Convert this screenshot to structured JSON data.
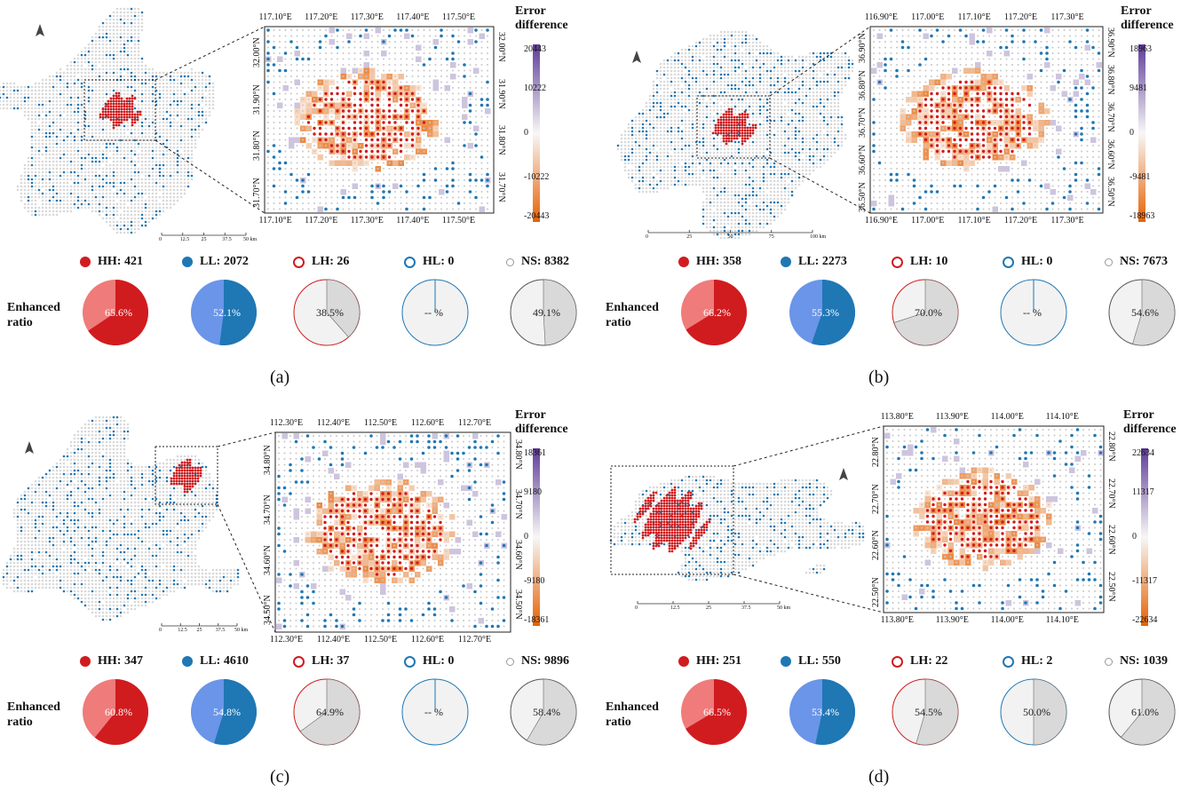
{
  "legend_labels": {
    "hh": "HH",
    "ll": "LL",
    "lh": "LH",
    "hl": "HL",
    "ns": "NS"
  },
  "enhanced_label": [
    "Enhanced",
    "ratio"
  ],
  "colorbar_title": [
    "Error",
    "difference"
  ],
  "colors": {
    "hh": "#d01c1f",
    "hh_light": "#ef7b7b",
    "ll": "#1f77b4",
    "ll_light": "#6a95e8",
    "ns_fill": "#d9d9d9",
    "ns_light": "#f2f2f2",
    "pos": "#5e3c99",
    "neg": "#e66101"
  },
  "chart_data": [
    {
      "type": "pie",
      "caption": "(a)",
      "counts": {
        "HH": 421,
        "LL": 2072,
        "LH": 26,
        "HL": 0,
        "NS": 8382
      },
      "enhanced_ratio": {
        "HH": "65.6%",
        "LL": "52.1%",
        "LH": "38.5%",
        "HL": "-- %",
        "NS": "49.1%"
      },
      "ratio_values": {
        "HH": 65.6,
        "LL": 52.1,
        "LH": 38.5,
        "HL": null,
        "NS": 49.1
      },
      "xticks": [
        "117.10°E",
        "117.20°E",
        "117.30°E",
        "117.40°E",
        "117.50°E"
      ],
      "yticks": [
        "31.70°N",
        "31.80°N",
        "31.90°N",
        "32.00°N"
      ],
      "colorbar": [
        "20443",
        "10222",
        "0",
        "-10222",
        "-20443"
      ],
      "scale": [
        "0",
        "12.5",
        "25",
        "37.5",
        "50 km"
      ]
    },
    {
      "type": "pie",
      "caption": "(b)",
      "counts": {
        "HH": 358,
        "LL": 2273,
        "LH": 10,
        "HL": 0,
        "NS": 7673
      },
      "enhanced_ratio": {
        "HH": "66.2%",
        "LL": "55.3%",
        "LH": "70.0%",
        "HL": "-- %",
        "NS": "54.6%"
      },
      "ratio_values": {
        "HH": 66.2,
        "LL": 55.3,
        "LH": 70.0,
        "HL": null,
        "NS": 54.6
      },
      "xticks": [
        "116.90°E",
        "117.00°E",
        "117.10°E",
        "117.20°E",
        "117.30°E"
      ],
      "yticks": [
        "36.50°N",
        "36.60°N",
        "36.70°N",
        "36.80°N",
        "36.90°N"
      ],
      "colorbar": [
        "18963",
        "9481",
        "0",
        "-9481",
        "-18963"
      ],
      "scale": [
        "0",
        "25",
        "50",
        "75",
        "100 km"
      ]
    },
    {
      "type": "pie",
      "caption": "(c)",
      "counts": {
        "HH": 347,
        "LL": 4610,
        "LH": 37,
        "HL": 0,
        "NS": 9896
      },
      "enhanced_ratio": {
        "HH": "60.8%",
        "LL": "54.8%",
        "LH": "64.9%",
        "HL": "-- %",
        "NS": "58.4%"
      },
      "ratio_values": {
        "HH": 60.8,
        "LL": 54.8,
        "LH": 64.9,
        "HL": null,
        "NS": 58.4
      },
      "xticks": [
        "112.30°E",
        "112.40°E",
        "112.50°E",
        "112.60°E",
        "112.70°E"
      ],
      "yticks": [
        "34.50°N",
        "34.60°N",
        "34.70°N",
        "34.80°N"
      ],
      "colorbar": [
        "18361",
        "9180",
        "0",
        "-9180",
        "-18361"
      ],
      "scale": [
        "0",
        "12.5",
        "25",
        "37.5",
        "50 km"
      ]
    },
    {
      "type": "pie",
      "caption": "(d)",
      "counts": {
        "HH": 251,
        "LL": 550,
        "LH": 22,
        "HL": 2,
        "NS": 1039
      },
      "enhanced_ratio": {
        "HH": "66.5%",
        "LL": "53.4%",
        "LH": "54.5%",
        "HL": "50.0%",
        "NS": "61.0%"
      },
      "ratio_values": {
        "HH": 66.5,
        "LL": 53.4,
        "LH": 54.5,
        "HL": 50.0,
        "NS": 61.0
      },
      "xticks": [
        "113.80°E",
        "113.90°E",
        "114.00°E",
        "114.10°E"
      ],
      "yticks": [
        "22.50°N",
        "22.60°N",
        "22.70°N",
        "22.80°N"
      ],
      "colorbar": [
        "22634",
        "11317",
        "0",
        "-11317",
        "-22634"
      ],
      "scale": [
        "0",
        "12.5",
        "25",
        "37.5",
        "50 km"
      ]
    }
  ]
}
